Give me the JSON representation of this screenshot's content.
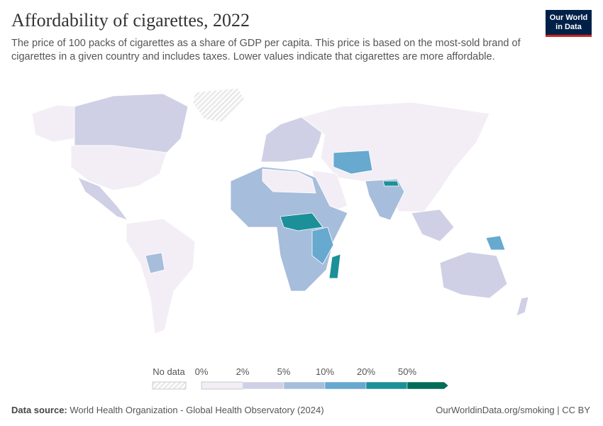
{
  "header": {
    "title": "Affordability of cigarettes, 2022",
    "subtitle": "The price of 100 packs of cigarettes as a share of GDP per capita. This price is based on the most-sold brand of cigarettes in a given country and includes taxes. Lower values indicate that cigarettes are more affordable."
  },
  "logo": {
    "line1": "Our World",
    "line2": "in Data"
  },
  "legend": {
    "no_data": "No data",
    "ticks": [
      "0%",
      "2%",
      "5%",
      "10%",
      "20%",
      "50%"
    ],
    "colors": [
      "#f3eef6",
      "#cfd0e5",
      "#a6bddb",
      "#67a9cf",
      "#1c9099",
      "#016c59"
    ]
  },
  "footer": {
    "source_label": "Data source:",
    "source": "World Health Organization - Global Health Observatory (2024)",
    "url": "OurWorldinData.org/smoking | CC BY"
  }
}
